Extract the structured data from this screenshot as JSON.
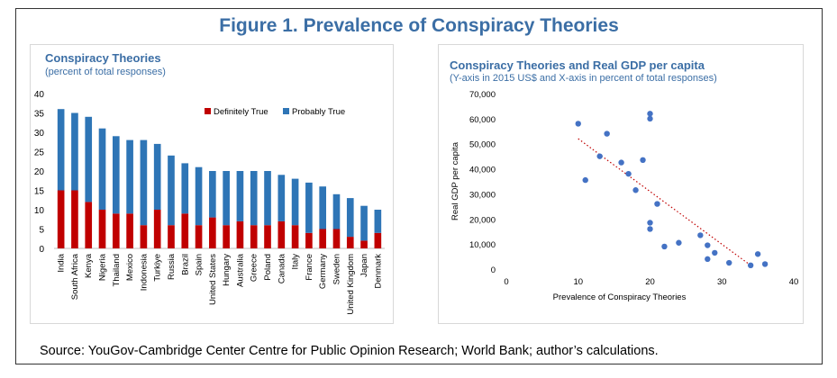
{
  "figure": {
    "title": "Figure 1. Prevalence of Conspiracy Theories",
    "source": "Source: YouGov-Cambridge Center Centre for Public Opinion Research; World Bank; author’s calculations."
  },
  "colors": {
    "title_blue": "#3b6ea5",
    "definitely_true": "#c00000",
    "probably_true": "#2e75b6",
    "scatter_point": "#4472c4",
    "trendline": "#c00000"
  },
  "chart_data": [
    {
      "type": "bar",
      "stacked": true,
      "title": "Conspiracy Theories",
      "subtitle": "(percent of total responses)",
      "categories": [
        "India",
        "South Africa",
        "Kenya",
        "Nigeria",
        "Thailand",
        "Mexico",
        "Indonesia",
        "Turkiye",
        "Russia",
        "Brazil",
        "Spain",
        "United States",
        "Hungary",
        "Australia",
        "Greece",
        "Poland",
        "Canada",
        "Italy",
        "France",
        "Germany",
        "Sweden",
        "United Kingdom",
        "Japan",
        "Denmark"
      ],
      "series": [
        {
          "name": "Definitely True",
          "color": "#c00000",
          "values": [
            15,
            15,
            12,
            10,
            9,
            9,
            6,
            10,
            6,
            9,
            6,
            8,
            6,
            7,
            6,
            6,
            7,
            6,
            4,
            5,
            5,
            3,
            2,
            4
          ]
        },
        {
          "name": "Probably True",
          "color": "#2e75b6",
          "values": [
            21,
            20,
            22,
            21,
            20,
            19,
            22,
            17,
            18,
            13,
            15,
            12,
            14,
            13,
            14,
            14,
            12,
            12,
            13,
            11,
            9,
            10,
            9,
            6
          ]
        }
      ],
      "ylim": [
        0,
        40
      ],
      "yticks": [
        0,
        5,
        10,
        15,
        20,
        25,
        30,
        35,
        40
      ],
      "legend": "top-right",
      "grid": false
    },
    {
      "type": "scatter",
      "title": "Conspiracy Theories and Real GDP per capita",
      "subtitle": "(Y-axis in 2015 US$ and X-axis in percent of total responses)",
      "xlabel": "Prevalence of Conspiracy Theories",
      "ylabel": "Real GDP per capita",
      "xlim": [
        0,
        40
      ],
      "ylim": [
        0,
        70000
      ],
      "xticks": [
        0,
        10,
        20,
        30,
        40
      ],
      "yticks": [
        0,
        10000,
        20000,
        30000,
        40000,
        50000,
        60000,
        70000
      ],
      "ytick_labels": [
        "0",
        "10,000",
        "20,000",
        "30,000",
        "40,000",
        "50,000",
        "60,000",
        "70,000"
      ],
      "points": [
        {
          "x": 10,
          "y": 58000
        },
        {
          "x": 11,
          "y": 35500
        },
        {
          "x": 13,
          "y": 45000
        },
        {
          "x": 14,
          "y": 54000
        },
        {
          "x": 16,
          "y": 42500
        },
        {
          "x": 17,
          "y": 38000
        },
        {
          "x": 18,
          "y": 31500
        },
        {
          "x": 19,
          "y": 43500
        },
        {
          "x": 20,
          "y": 62000
        },
        {
          "x": 20,
          "y": 60000
        },
        {
          "x": 20,
          "y": 18500
        },
        {
          "x": 20,
          "y": 16000
        },
        {
          "x": 21,
          "y": 26000
        },
        {
          "x": 22,
          "y": 9000
        },
        {
          "x": 24,
          "y": 10500
        },
        {
          "x": 27,
          "y": 13500
        },
        {
          "x": 28,
          "y": 9500
        },
        {
          "x": 28,
          "y": 4000
        },
        {
          "x": 29,
          "y": 6500
        },
        {
          "x": 31,
          "y": 2500
        },
        {
          "x": 34,
          "y": 1500
        },
        {
          "x": 35,
          "y": 6000
        },
        {
          "x": 36,
          "y": 2000
        }
      ],
      "trendline": {
        "style": "dotted",
        "from": {
          "x": 10,
          "y": 52000
        },
        "to": {
          "x": 34,
          "y": 1500
        }
      },
      "grid": false
    }
  ]
}
